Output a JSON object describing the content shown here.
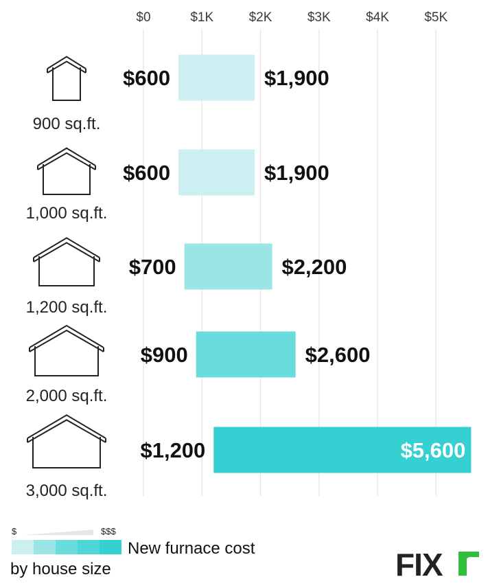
{
  "chart_data": {
    "type": "bar",
    "subtype": "floating-range-horizontal",
    "categories": [
      "900 sq.ft.",
      "1,000 sq.ft.",
      "1,200 sq.ft.",
      "2,000 sq.ft.",
      "3,000 sq.ft."
    ],
    "series": [
      {
        "low": 600,
        "high": 1900,
        "low_label": "$600",
        "high_label": "$1,900",
        "color": "#ccf0f1"
      },
      {
        "low": 600,
        "high": 1900,
        "low_label": "$600",
        "high_label": "$1,900",
        "color": "#ccf0f1"
      },
      {
        "low": 700,
        "high": 2200,
        "low_label": "$700",
        "high_label": "$2,200",
        "color": "#9be5e7"
      },
      {
        "low": 900,
        "high": 2600,
        "low_label": "$900",
        "high_label": "$2,600",
        "color": "#6bdcdd"
      },
      {
        "low": 1200,
        "high": 5600,
        "low_label": "$1,200",
        "high_label": "$5,600",
        "color": "#34d0d2"
      }
    ],
    "x_ticks": [
      {
        "value": 0,
        "label": "$0"
      },
      {
        "value": 1000,
        "label": "$1K"
      },
      {
        "value": 2000,
        "label": "$2K"
      },
      {
        "value": 3000,
        "label": "$3K"
      },
      {
        "value": 4000,
        "label": "$4K"
      },
      {
        "value": 5000,
        "label": "$5K"
      }
    ],
    "xlim": [
      0,
      5600
    ],
    "grid": "vertical",
    "legend": {
      "low_symbol": "$",
      "high_symbol": "$$$",
      "colors": [
        "#ccf0f1",
        "#9be5e7",
        "#6bdcdd",
        "#4fd6d8",
        "#34d0d2"
      ],
      "line1": "New furnace cost",
      "line2": "by house size"
    }
  },
  "logo": {
    "text": "FIX",
    "accent_color": "#2fbf3a"
  }
}
